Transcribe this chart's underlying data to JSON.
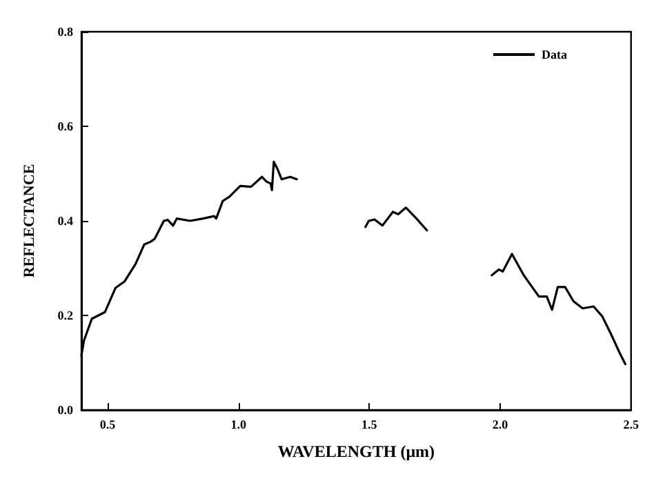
{
  "chart_data": {
    "type": "line",
    "xlabel": "WAVELENGTH (μm)",
    "ylabel": "REFLECTANCE",
    "x": [
      0.4,
      0.41,
      0.44,
      0.465,
      0.49,
      0.53,
      0.565,
      0.607,
      0.64,
      0.665,
      0.68,
      0.715,
      0.73,
      0.75,
      0.765,
      0.815,
      0.865,
      0.907,
      0.915,
      0.94,
      0.965,
      1.007,
      1.048,
      1.09,
      1.107,
      1.123,
      1.128,
      1.135,
      1.148,
      1.165,
      1.198,
      1.223,
      1.35,
      1.485,
      1.498,
      1.52,
      1.55,
      1.59,
      1.61,
      1.64,
      1.68,
      1.72,
      1.85,
      1.968,
      1.995,
      2.01,
      2.045,
      2.09,
      2.148,
      2.178,
      2.198,
      2.22,
      2.248,
      2.28,
      2.315,
      2.357,
      2.39,
      2.423,
      2.457,
      2.478
    ],
    "series": [
      {
        "name": "Data",
        "color": "#000000",
        "values": [
          0.115,
          0.147,
          0.193,
          0.2,
          0.207,
          0.258,
          0.272,
          0.309,
          0.35,
          0.356,
          0.362,
          0.4,
          0.402,
          0.39,
          0.405,
          0.4,
          0.405,
          0.41,
          0.405,
          0.442,
          0.451,
          0.474,
          0.472,
          0.493,
          0.483,
          0.479,
          0.465,
          0.525,
          0.511,
          0.488,
          0.493,
          0.488,
          null,
          0.387,
          0.4,
          0.403,
          0.39,
          0.419,
          0.414,
          0.428,
          0.405,
          0.38,
          null,
          0.285,
          0.297,
          0.293,
          0.33,
          0.285,
          0.24,
          0.24,
          0.212,
          0.26,
          0.26,
          0.23,
          0.215,
          0.219,
          0.198,
          0.161,
          0.12,
          0.097
        ]
      }
    ],
    "xlim": [
      0.4,
      2.5
    ],
    "xticks": [
      {
        "value": 0.5,
        "label": "0.5"
      },
      {
        "value": 1,
        "label": "1.0"
      },
      {
        "value": 1.5,
        "label": "1.5"
      },
      {
        "value": 2,
        "label": "2.0"
      },
      {
        "value": 2.5,
        "label": "2.5"
      }
    ],
    "ylim": [
      0,
      0.8
    ],
    "yticks": [
      {
        "value": 0,
        "label": "0.0"
      },
      {
        "value": 0.2,
        "label": "0.2"
      },
      {
        "value": 0.4,
        "label": "0.4"
      },
      {
        "value": 0.6,
        "label": "0.6"
      },
      {
        "value": 0.8,
        "label": "0.8"
      }
    ],
    "grid": false,
    "legend": "top right",
    "marker": "none",
    "line_style": "solid"
  }
}
